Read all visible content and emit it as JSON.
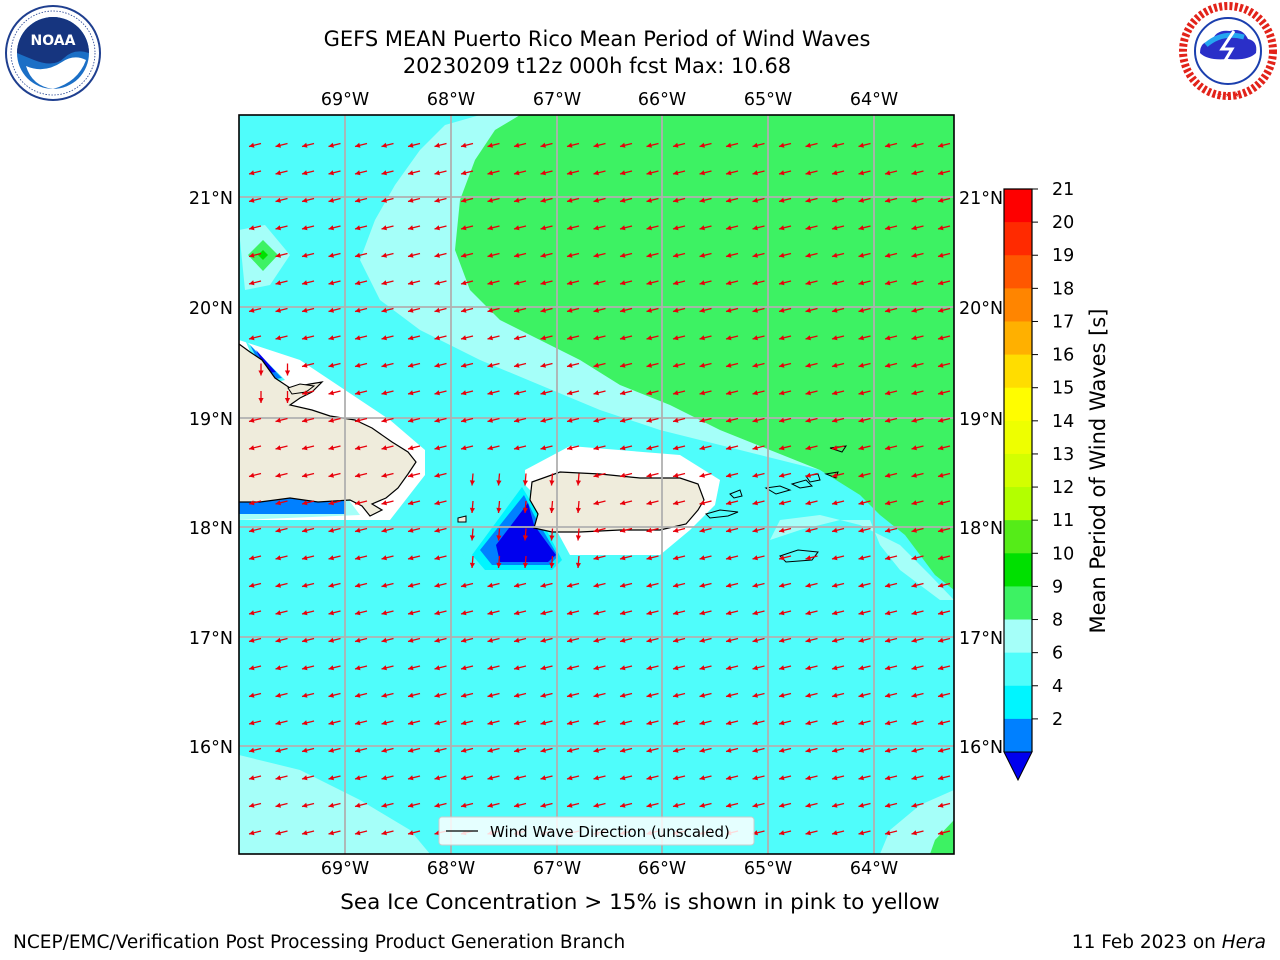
{
  "header": {
    "title_line1": "GEFS MEAN Puerto Rico Mean Period of Wind Waves",
    "title_line2": "20230209 t12z 000h fcst   Max: 10.68"
  },
  "logos": {
    "left": "noara-logo",
    "right": "nws-logo"
  },
  "map": {
    "lon_ticks": [
      "69°W",
      "68°W",
      "67°W",
      "66°W",
      "65°W",
      "64°W"
    ],
    "lat_ticks": [
      "21°N",
      "20°N",
      "19°N",
      "18°N",
      "17°N",
      "16°N"
    ],
    "legend_label": "Wind Wave Direction (unscaled)",
    "arrow_color": "#e8000b",
    "land_color": "#efecdc"
  },
  "colorbar": {
    "label": "Mean Period of Wind Waves [s]",
    "tick_labels": [
      "21",
      "20",
      "19",
      "18",
      "17",
      "16",
      "15",
      "14",
      "13",
      "12",
      "11",
      "10",
      "9",
      "8",
      "6",
      "4",
      "2"
    ],
    "colors": [
      "#fe0000",
      "#ff2a00",
      "#ff5700",
      "#ff8500",
      "#ffb000",
      "#ffdd00",
      "#fffd00",
      "#eeff00",
      "#d3ff00",
      "#b3ff00",
      "#55ec18",
      "#00e000",
      "#3df263",
      "#a5fff9",
      "#4ffdfb",
      "#00f5ff",
      "#0080ff"
    ],
    "under_color": "#0000ee"
  },
  "footer": {
    "subtitle": "Sea Ice Concentration > 15% is shown in pink to yellow",
    "credit": "NCEP/EMC/Verification Post Processing Product Generation Branch",
    "date_prefix": "11 Feb 2023 on ",
    "machine": "Hera"
  }
}
